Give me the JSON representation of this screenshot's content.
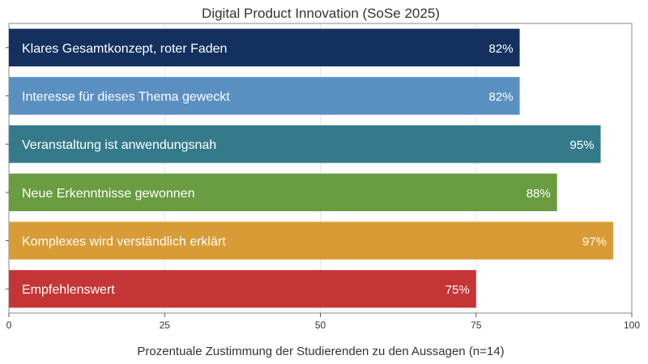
{
  "chart_data": {
    "type": "bar",
    "orientation": "horizontal",
    "title": "Digital Product Innovation (SoSe 2025)",
    "xlabel": "Prozentuale Zustimmung der Studierenden zu den Aussagen (n=14)",
    "ylabel": "",
    "xlim": [
      0,
      100
    ],
    "xticks": [
      0,
      25,
      50,
      75,
      100
    ],
    "grid": true,
    "categories": [
      "Klares Gesamtkonzept, roter Faden",
      "Interesse für dieses Thema geweckt",
      "Veranstaltung ist anwendungsnah",
      "Neue Erkenntnisse gewonnen",
      "Komplexes wird verständlich erklärt",
      "Empfehlenswert"
    ],
    "values": [
      82,
      82,
      95,
      88,
      97,
      75
    ],
    "value_labels": [
      "82%",
      "82%",
      "95%",
      "88%",
      "97%",
      "75%"
    ],
    "colors": [
      "#14305f",
      "#5a8fc2",
      "#357a8b",
      "#6a9c42",
      "#d89b35",
      "#c63535"
    ]
  }
}
